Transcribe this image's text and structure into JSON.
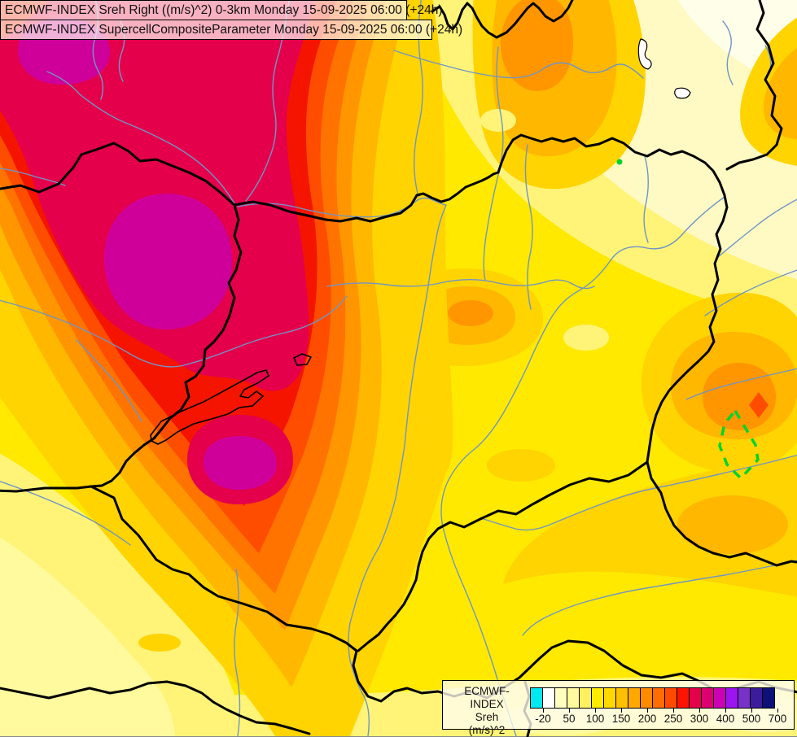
{
  "title_bar": {
    "line1": "ECMWF-INDEX Sreh Right ((m/s)^2) 0-3km Monday 15-09-2025 06:00 (+24h)",
    "line2": "ECMWF-INDEX SupercellCompositeParameter Monday 15-09-2025 06:00 (+24h)"
  },
  "legend": {
    "product": "ECMWF-INDEX",
    "parameter": "Sreh",
    "units": "(m/s)^2",
    "cells": [
      "#00E8F0",
      "#FFFFFF",
      "#FFFFC0",
      "#FFF9A0",
      "#FFF060",
      "#FFEC00",
      "#FFD800",
      "#FFC000",
      "#FFA800",
      "#FF8C00",
      "#FF6C00",
      "#FF4A00",
      "#FF1400",
      "#E4004B",
      "#DC0070",
      "#CC00B4",
      "#9C14F0",
      "#7832C8",
      "#3C1C9C",
      "#0C1078"
    ],
    "ticks": [
      {
        "label": "-20",
        "b": 1
      },
      {
        "label": "50",
        "b": 3
      },
      {
        "label": "100",
        "b": 5
      },
      {
        "label": "150",
        "b": 7
      },
      {
        "label": "200",
        "b": 9
      },
      {
        "label": "250",
        "b": 11
      },
      {
        "label": "300",
        "b": 13
      },
      {
        "label": "400",
        "b": 15
      },
      {
        "label": "500",
        "b": 17
      },
      {
        "label": "700",
        "b": 19
      }
    ]
  },
  "map": {
    "colors": {
      "border": "#000000",
      "river": "#7095C5",
      "lake": "#FFFFFF",
      "highlight": "#00D42D"
    },
    "contour_colors": [
      {
        "name": "near_white",
        "hex": "#FFFEE8"
      },
      {
        "name": "cream",
        "hex": "#FFF9C4"
      },
      {
        "name": "light_yellow",
        "hex": "#FFF478"
      },
      {
        "name": "pale_yellow",
        "hex": "#FFFA9E"
      },
      {
        "name": "yellow",
        "hex": "#FFE900"
      },
      {
        "name": "gold",
        "hex": "#FFD400"
      },
      {
        "name": "amber",
        "hex": "#FFB700"
      },
      {
        "name": "orange",
        "hex": "#FF9600"
      },
      {
        "name": "deep_orange",
        "hex": "#FF7300"
      },
      {
        "name": "orange_red",
        "hex": "#FF4D00"
      },
      {
        "name": "red",
        "hex": "#F51400"
      },
      {
        "name": "crimson",
        "hex": "#E4004B"
      },
      {
        "name": "magenta",
        "hex": "#CE0099"
      }
    ]
  }
}
